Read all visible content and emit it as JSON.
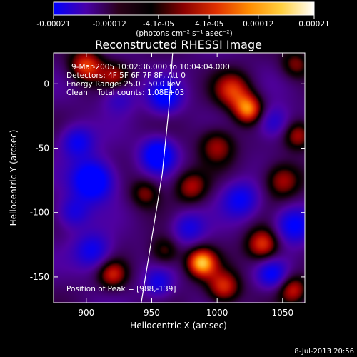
{
  "chart_data": {
    "type": "heatmap",
    "title": "Reconstructed RHESSI Image",
    "xlabel": "Heliocentric X (arcsec)",
    "ylabel": "Heliocentric Y (arcsec)",
    "xlim": [
      875,
      1067
    ],
    "ylim": [
      -170,
      24
    ],
    "x_ticks": [
      900,
      950,
      1000,
      1050
    ],
    "y_ticks": [
      0,
      -50,
      -100,
      -150
    ],
    "colorbar": {
      "range": [
        -0.00021,
        0.00021
      ],
      "ticks": [
        "-0.00021",
        "-0.00012",
        "-4.1e-05",
        "4.1e-05",
        "0.00012",
        "0.00021"
      ],
      "tick_values": [
        -0.00021,
        -0.00012,
        -4.1e-05,
        4.1e-05,
        0.00012,
        0.00021
      ],
      "units": "(photons cm⁻² s⁻¹ asec⁻²)",
      "colors": [
        "#0000ff",
        "#4800a8",
        "#2a0018",
        "#000000",
        "#8a0000",
        "#e03000",
        "#ff8c00",
        "#ffd040",
        "#ffffff"
      ]
    },
    "info_lines": [
      "9-Mar-2005 10:02:36.000 to 10:04:04.000",
      "Detectors: 4F 5F 6F 7F 8F, Att 0",
      "Energy Range: 25.0 - 50.0 keV",
      "Clean    Total counts: 1.08E+03"
    ],
    "peak_text": "Position of Peak = [988,-139]",
    "peak": [
      988,
      -139
    ],
    "date_stamp": "8-Jul-2013 20:56",
    "limb_points": [
      [
        966,
        24
      ],
      [
        963,
        -20
      ],
      [
        958,
        -70
      ],
      [
        950,
        -120
      ],
      [
        942,
        -170
      ]
    ],
    "blobs": [
      {
        "x": 905,
        "y": -75,
        "v": -1.0,
        "s": 11
      },
      {
        "x": 893,
        "y": -45,
        "v": -0.6,
        "s": 9
      },
      {
        "x": 955,
        "y": -55,
        "v": -0.9,
        "s": 9
      },
      {
        "x": 960,
        "y": -10,
        "v": -0.7,
        "s": 9
      },
      {
        "x": 905,
        "y": -130,
        "v": -0.6,
        "s": 10
      },
      {
        "x": 925,
        "y": -10,
        "v": -0.4,
        "s": 9
      },
      {
        "x": 1018,
        "y": -90,
        "v": -0.6,
        "s": 10
      },
      {
        "x": 1058,
        "y": -110,
        "v": -0.7,
        "s": 10
      },
      {
        "x": 1042,
        "y": -148,
        "v": -0.6,
        "s": 8
      },
      {
        "x": 978,
        "y": -112,
        "v": -0.5,
        "s": 9
      },
      {
        "x": 1043,
        "y": -30,
        "v": -0.5,
        "s": 9
      },
      {
        "x": 890,
        "y": -100,
        "v": -0.5,
        "s": 9
      },
      {
        "x": 955,
        "y": -155,
        "v": -0.5,
        "s": 8
      },
      {
        "x": 900,
        "y": 14,
        "v": 0.75,
        "s": 9
      },
      {
        "x": 922,
        "y": 5,
        "v": 0.5,
        "s": 8
      },
      {
        "x": 1012,
        "y": -5,
        "v": 0.65,
        "s": 10
      },
      {
        "x": 1024,
        "y": -20,
        "v": 0.85,
        "s": 8
      },
      {
        "x": 1000,
        "y": -48,
        "v": 0.55,
        "s": 10
      },
      {
        "x": 945,
        "y": -85,
        "v": 0.45,
        "s": 8
      },
      {
        "x": 980,
        "y": -80,
        "v": 0.55,
        "s": 9
      },
      {
        "x": 1050,
        "y": -75,
        "v": 0.6,
        "s": 10
      },
      {
        "x": 1062,
        "y": -40,
        "v": 0.55,
        "s": 8
      },
      {
        "x": 1035,
        "y": -125,
        "v": 0.75,
        "s": 9
      },
      {
        "x": 988,
        "y": -139,
        "v": 1.0,
        "s": 8
      },
      {
        "x": 1005,
        "y": -158,
        "v": 0.7,
        "s": 9
      },
      {
        "x": 1058,
        "y": -160,
        "v": 0.6,
        "s": 8
      },
      {
        "x": 960,
        "y": -130,
        "v": 0.45,
        "s": 8
      },
      {
        "x": 920,
        "y": -148,
        "v": 0.6,
        "s": 8
      },
      {
        "x": 1060,
        "y": 15,
        "v": 0.45,
        "s": 8
      }
    ]
  }
}
